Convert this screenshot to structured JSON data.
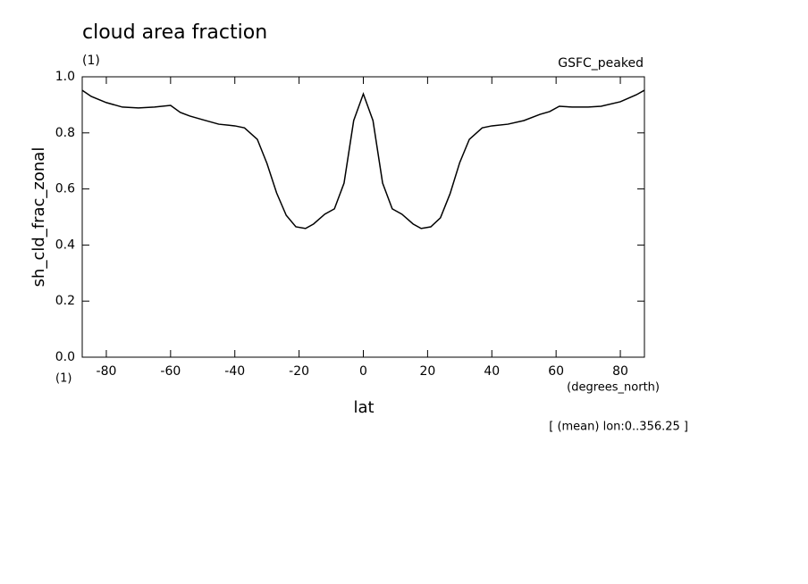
{
  "chart_data": {
    "type": "line",
    "title": "cloud area fraction",
    "subtitle": "GSFC_peaked",
    "y_units": "(1)",
    "x_units_left": "(1)",
    "x_units": "(degrees_north)",
    "xlabel": "lat",
    "ylabel": "sh_cld_frac_zonal",
    "footnote": "[ (mean) lon:0..356.25 ]",
    "xlim": [
      -87.5,
      87.5
    ],
    "ylim": [
      0,
      1
    ],
    "xticks": [
      -80,
      -60,
      -40,
      -20,
      0,
      20,
      40,
      60,
      80
    ],
    "yticks": [
      {
        "value": 0,
        "label": "0.0"
      },
      0.2,
      0.4,
      0.6,
      0.8,
      {
        "value": 1,
        "label": "1.0"
      }
    ],
    "series": [
      {
        "color": "#000000",
        "x": [
          -87.5,
          -84.7,
          -80,
          -75,
          -70,
          -65,
          -60,
          -57,
          -54,
          -50,
          -45,
          -40,
          -37,
          -33,
          -30,
          -27,
          -24,
          -21,
          -18,
          -15.5,
          -12,
          -9,
          -6,
          -3,
          0,
          3,
          6,
          9,
          12,
          15.5,
          18,
          21,
          24,
          27,
          30,
          33,
          37,
          40,
          45,
          50,
          55,
          58,
          61,
          65,
          70,
          74,
          80,
          85,
          87.5
        ],
        "values": [
          0.952,
          0.93,
          0.908,
          0.892,
          0.889,
          0.892,
          0.898,
          0.873,
          0.86,
          0.847,
          0.831,
          0.825,
          0.818,
          0.777,
          0.691,
          0.586,
          0.506,
          0.465,
          0.459,
          0.475,
          0.51,
          0.529,
          0.621,
          0.844,
          0.939,
          0.844,
          0.621,
          0.529,
          0.51,
          0.475,
          0.459,
          0.465,
          0.497,
          0.583,
          0.694,
          0.777,
          0.818,
          0.825,
          0.831,
          0.844,
          0.866,
          0.876,
          0.895,
          0.892,
          0.892,
          0.895,
          0.911,
          0.936,
          0.952
        ]
      }
    ]
  }
}
